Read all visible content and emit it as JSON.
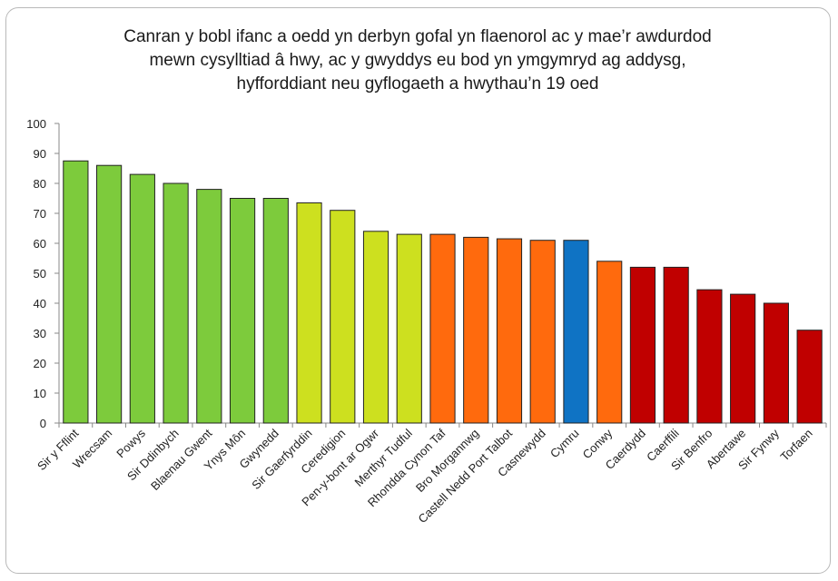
{
  "chart_data": {
    "type": "bar",
    "title_lines": [
      "Canran y bobl ifanc a oedd yn derbyn gofal yn flaenorol ac y mae’r awdurdod",
      "mewn cysylltiad â hwy, ac y gwyddys eu bod yn ymgymryd ag addysg,",
      "hyfforddiant neu gyflogaeth a hwythau’n 19 oed"
    ],
    "categories": [
      "Sir y Fflint",
      "Wrecsam",
      "Powys",
      "Sir Ddinbych",
      "Blaenau Gwent",
      "Ynys Môn",
      "Gwynedd",
      "Sir Gaerfyrddin",
      "Ceredigion",
      "Pen-y-bont ar Ogwr",
      "Merthyr Tudful",
      "Rhondda Cynon Taf",
      "Bro Morgannwg",
      "Castell Nedd Port Talbot",
      "Casnewydd",
      "Cymru",
      "Conwy",
      "Caerdydd",
      "Caerffili",
      "Sir Benfro",
      "Abertawe",
      "Sir Fynwy",
      "Torfaen"
    ],
    "values": [
      87.5,
      86,
      83,
      80,
      78,
      75,
      75,
      73.5,
      71,
      64,
      63,
      63,
      62,
      61.5,
      61,
      61,
      54,
      52,
      52,
      44.5,
      43,
      40,
      31
    ],
    "colors": [
      "#7dcb3c",
      "#7dcb3c",
      "#7dcb3c",
      "#7dcb3c",
      "#7dcb3c",
      "#7dcb3c",
      "#7dcb3c",
      "#cde01f",
      "#cde01f",
      "#cde01f",
      "#cde01f",
      "#ff6a0d",
      "#ff6a0d",
      "#ff6a0d",
      "#ff6a0d",
      "#0f73c4",
      "#ff6a0d",
      "#c00000",
      "#c00000",
      "#c00000",
      "#c00000",
      "#c00000",
      "#c00000"
    ],
    "ylim": [
      0,
      100
    ],
    "yticks": [
      0,
      10,
      20,
      30,
      40,
      50,
      60,
      70,
      80,
      90,
      100
    ],
    "grid": false,
    "legend": "none"
  }
}
